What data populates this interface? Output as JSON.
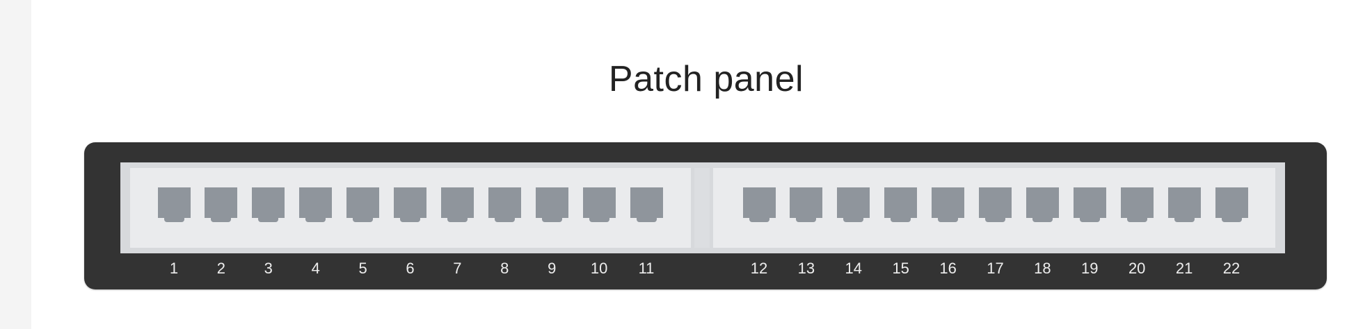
{
  "title": "Patch panel",
  "ports": {
    "left": [
      "1",
      "2",
      "3",
      "4",
      "5",
      "6",
      "7",
      "8",
      "9",
      "10",
      "11"
    ],
    "right": [
      "12",
      "13",
      "14",
      "15",
      "16",
      "17",
      "18",
      "19",
      "20",
      "21",
      "22"
    ]
  },
  "colors": {
    "panel_frame": "#333333",
    "panel_face": "#eaebed",
    "port": "#8f959c",
    "label": "#eeeeee"
  }
}
